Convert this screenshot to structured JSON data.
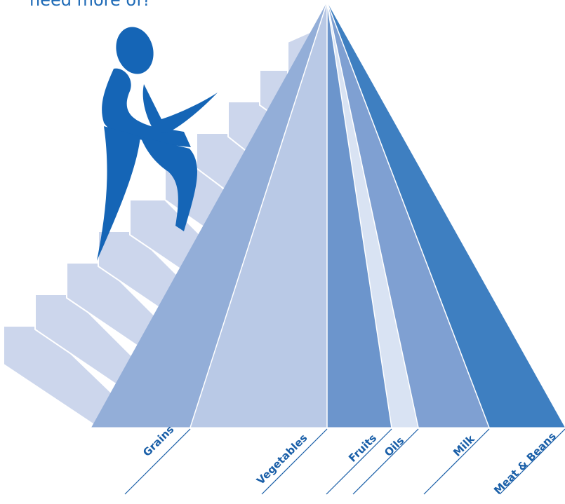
{
  "top_text": "need more of?",
  "colors": {
    "grains": "#93aed8",
    "vegetables": "#b9c9e6",
    "fruits": "#6c95cc",
    "oils": "#d9e3f3",
    "milk": "#7fa0d2",
    "meat_beans": "#3e7fc1",
    "stairs": "#ccd6ec",
    "figure": "#1565b6",
    "label_text": "#1a5fa8"
  },
  "pyramid": {
    "bands": [
      {
        "key": "grains",
        "label": "Grains"
      },
      {
        "key": "vegetables",
        "label": "Vegetables"
      },
      {
        "key": "fruits",
        "label": "Fruits"
      },
      {
        "key": "oils",
        "label": "Oils"
      },
      {
        "key": "milk",
        "label": "Milk"
      },
      {
        "key": "meat_beans",
        "label": "Meat & Beans"
      }
    ]
  },
  "icons": {
    "figure": "climbing-person-icon",
    "stairs": "staircase-icon"
  }
}
